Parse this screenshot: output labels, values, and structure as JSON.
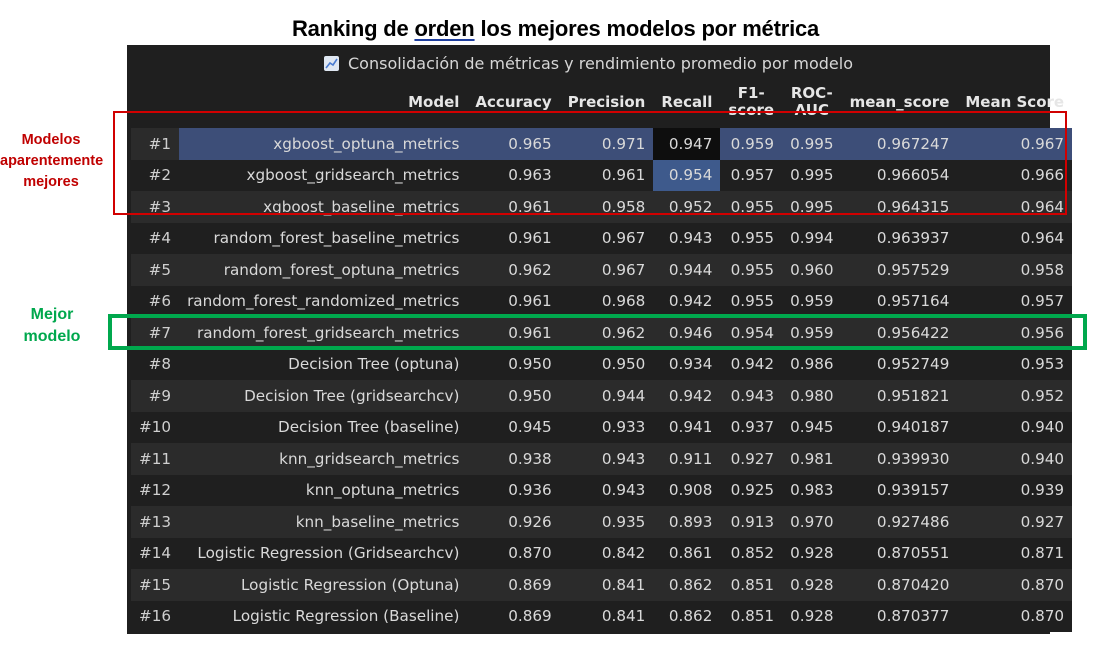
{
  "heading": {
    "pre": "Ranking de ",
    "underlined": "orden",
    "post": "  los mejores modelos por métrica"
  },
  "caption": {
    "icon": "chart-line-icon",
    "text": "Consolidación de métricas y rendimiento promedio por modelo"
  },
  "annotations": {
    "red_note": [
      "Modelos",
      "aparentemente",
      "mejores"
    ],
    "green_note": [
      "Mejor",
      "modelo"
    ],
    "colors": {
      "red": "#d10000",
      "green": "#00a84d"
    }
  },
  "table": {
    "columns": [
      "",
      "Model",
      "Accuracy",
      "Precision",
      "Recall",
      "F1-score",
      "ROC-AUC",
      "mean_score",
      "Mean Score"
    ],
    "header_lines": {
      "f1": [
        "F1-",
        "score"
      ],
      "roc": [
        "ROC-",
        "AUC"
      ]
    },
    "rows": [
      [
        "#1",
        "xgboost_optuna_metrics",
        "0.965",
        "0.971",
        "0.947",
        "0.959",
        "0.995",
        "0.967247",
        "0.967"
      ],
      [
        "#2",
        "xgboost_gridsearch_metrics",
        "0.963",
        "0.961",
        "0.954",
        "0.957",
        "0.995",
        "0.966054",
        "0.966"
      ],
      [
        "#3",
        "xgboost_baseline_metrics",
        "0.961",
        "0.958",
        "0.952",
        "0.955",
        "0.995",
        "0.964315",
        "0.964"
      ],
      [
        "#4",
        "random_forest_baseline_metrics",
        "0.961",
        "0.967",
        "0.943",
        "0.955",
        "0.994",
        "0.963937",
        "0.964"
      ],
      [
        "#5",
        "random_forest_optuna_metrics",
        "0.962",
        "0.967",
        "0.944",
        "0.955",
        "0.960",
        "0.957529",
        "0.958"
      ],
      [
        "#6",
        "random_forest_randomized_metrics",
        "0.961",
        "0.968",
        "0.942",
        "0.955",
        "0.959",
        "0.957164",
        "0.957"
      ],
      [
        "#7",
        "random_forest_gridsearch_metrics",
        "0.961",
        "0.962",
        "0.946",
        "0.954",
        "0.959",
        "0.956422",
        "0.956"
      ],
      [
        "#8",
        "Decision Tree (optuna)",
        "0.950",
        "0.950",
        "0.934",
        "0.942",
        "0.986",
        "0.952749",
        "0.953"
      ],
      [
        "#9",
        "Decision Tree (gridsearchcv)",
        "0.950",
        "0.944",
        "0.942",
        "0.943",
        "0.980",
        "0.951821",
        "0.952"
      ],
      [
        "#10",
        "Decision Tree (baseline)",
        "0.945",
        "0.933",
        "0.941",
        "0.937",
        "0.945",
        "0.940187",
        "0.940"
      ],
      [
        "#11",
        "knn_gridsearch_metrics",
        "0.938",
        "0.943",
        "0.911",
        "0.927",
        "0.981",
        "0.939930",
        "0.940"
      ],
      [
        "#12",
        "knn_optuna_metrics",
        "0.936",
        "0.943",
        "0.908",
        "0.925",
        "0.983",
        "0.939157",
        "0.939"
      ],
      [
        "#13",
        "knn_baseline_metrics",
        "0.926",
        "0.935",
        "0.893",
        "0.913",
        "0.970",
        "0.927486",
        "0.927"
      ],
      [
        "#14",
        "Logistic Regression (Gridsearchcv)",
        "0.870",
        "0.842",
        "0.861",
        "0.852",
        "0.928",
        "0.870551",
        "0.871"
      ],
      [
        "#15",
        "Logistic Regression (Optuna)",
        "0.869",
        "0.841",
        "0.862",
        "0.851",
        "0.928",
        "0.870420",
        "0.870"
      ],
      [
        "#16",
        "Logistic Regression (Baseline)",
        "0.869",
        "0.841",
        "0.862",
        "0.851",
        "0.928",
        "0.870377",
        "0.870"
      ]
    ]
  }
}
